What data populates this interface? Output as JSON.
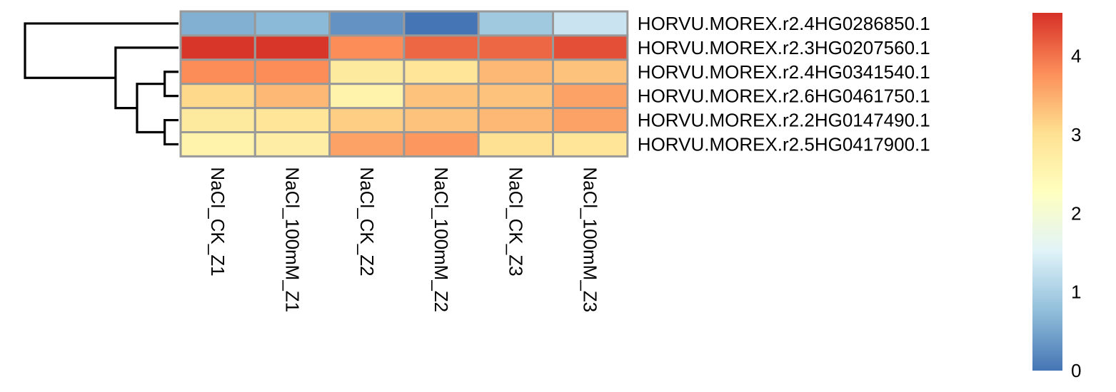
{
  "chart_data": {
    "type": "heatmap",
    "title": "",
    "xlabel": "",
    "ylabel": "",
    "columns": [
      "NaCl_CK_Z1",
      "NaCl_100mM_Z1",
      "NaCl_CK_Z2",
      "NaCl_100mM_Z2",
      "NaCl_CK_Z3",
      "NaCl_100mM_Z3"
    ],
    "rows": [
      "HORVU.MOREX.r2.4HG0286850.1",
      "HORVU.MOREX.r2.3HG0207560.1",
      "HORVU.MOREX.r2.4HG0341540.1",
      "HORVU.MOREX.r2.6HG0461750.1",
      "HORVU.MOREX.r2.2HG0147490.1",
      "HORVU.MOREX.r2.5HG0417900.1"
    ],
    "values": [
      [
        0.6,
        0.7,
        0.3,
        0.0,
        0.9,
        1.3
      ],
      [
        4.5,
        4.5,
        3.8,
        4.1,
        4.1,
        4.3
      ],
      [
        3.8,
        3.8,
        2.8,
        2.9,
        3.4,
        3.3
      ],
      [
        3.1,
        3.4,
        2.6,
        3.3,
        3.3,
        3.6
      ],
      [
        2.8,
        2.9,
        3.2,
        3.3,
        3.4,
        3.6
      ],
      [
        2.6,
        2.7,
        3.6,
        3.7,
        3.0,
        2.9
      ]
    ],
    "color_scale": {
      "min": 0,
      "max": 4.55,
      "stops": [
        "#4575B4",
        "#91BFDB",
        "#E0F3F8",
        "#FFFFBF",
        "#FEE090",
        "#FC8D59",
        "#D73027"
      ]
    },
    "legend": {
      "ticks": [
        0,
        1,
        2,
        3,
        4
      ],
      "tick_labels": [
        "0",
        "1",
        "2",
        "3",
        "4"
      ],
      "placement": "right"
    },
    "cell_border_color": "#999999",
    "dendrogram": {
      "side": "left",
      "merges": [
        {
          "left": 2,
          "right": 3,
          "height": 0.09
        },
        {
          "left": 4,
          "right": 5,
          "height": 0.09
        },
        {
          "left": "m0",
          "right": "m1",
          "height": 0.27
        },
        {
          "left": 1,
          "right": "m2",
          "height": 0.41
        },
        {
          "left": 0,
          "right": "m3",
          "height": 1.0
        }
      ]
    }
  }
}
